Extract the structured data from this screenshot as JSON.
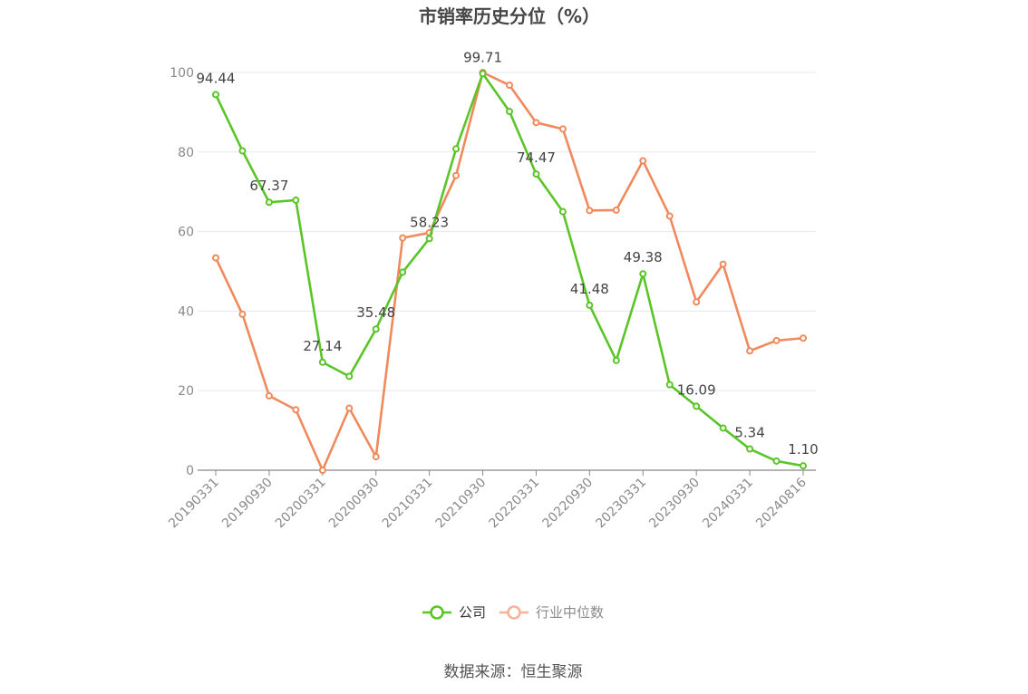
{
  "chart_data": {
    "type": "line",
    "title": "市销率历史分位（%）",
    "xlabel": "",
    "ylabel": "",
    "ylim": [
      0,
      100
    ],
    "y_ticks": [
      "0",
      "20",
      "40",
      "60",
      "80",
      "100"
    ],
    "x_tick_labels": [
      "20190331",
      "20190930",
      "20200331",
      "20200930",
      "20210331",
      "20210930",
      "20220331",
      "20220930",
      "20230331",
      "20230930",
      "20240331",
      "20240816"
    ],
    "legend_position": "bottom-center",
    "grid": true,
    "series": [
      {
        "name": "公司",
        "color": "#5ac528",
        "values": [
          94.44,
          80.3,
          67.37,
          67.9,
          27.14,
          23.6,
          35.48,
          49.8,
          58.23,
          80.8,
          99.71,
          90.2,
          74.47,
          65.0,
          41.48,
          27.6,
          49.38,
          21.5,
          16.09,
          10.6,
          5.34,
          2.3,
          1.1
        ],
        "labels": [
          "94.44",
          "",
          "67.37",
          "",
          "27.14",
          "",
          "35.48",
          "",
          "58.23",
          "",
          "99.71",
          "",
          "74.47",
          "",
          "41.48",
          "",
          "49.38",
          "",
          "16.09",
          "",
          "5.34",
          "",
          "1.10"
        ]
      },
      {
        "name": "行业中位数",
        "color": "#f08a5d",
        "values": [
          53.4,
          39.2,
          18.7,
          15.2,
          0.0,
          15.6,
          3.4,
          58.4,
          59.7,
          74.1,
          100.0,
          96.8,
          87.4,
          85.8,
          65.3,
          65.4,
          77.8,
          63.9,
          42.3,
          51.8,
          30.0,
          32.6,
          33.2
        ]
      }
    ]
  },
  "source": "数据来源：恒生聚源"
}
